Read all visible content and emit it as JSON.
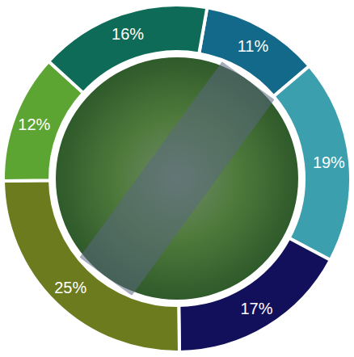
{
  "chart_data": {
    "type": "pie",
    "values": [
      11,
      19,
      17,
      25,
      12,
      16
    ],
    "value_labels": [
      "11%",
      "19%",
      "17%",
      "25%",
      "12%",
      "16%"
    ],
    "colors": [
      "#12698a",
      "#3b9fae",
      "#12105a",
      "#6b7b1e",
      "#5ca532",
      "#0d6b57"
    ],
    "data_labels": true
  }
}
